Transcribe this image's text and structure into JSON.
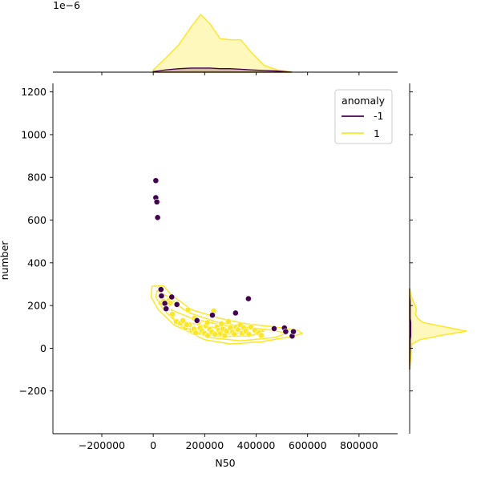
{
  "chart_data": {
    "type": "scatter",
    "xlabel": "N50",
    "ylabel": "number",
    "xlim": [
      -390000,
      950000
    ],
    "ylim": [
      -400,
      1240
    ],
    "xticks": [
      -200000,
      0,
      200000,
      400000,
      600000,
      800000
    ],
    "xtick_labels": [
      "−200000",
      "0",
      "200000",
      "400000",
      "600000",
      "800000"
    ],
    "yticks": [
      -200,
      0,
      200,
      400,
      600,
      800,
      1000,
      1200
    ],
    "ytick_labels": [
      "−200",
      "0",
      "200",
      "400",
      "600",
      "800",
      "1000",
      "1200"
    ],
    "top_marginal_scale_label": "1e−6",
    "grid": false,
    "legend": {
      "title": "anomaly",
      "placement": "top-right",
      "entries": [
        {
          "label": "-1",
          "color": "#440154"
        },
        {
          "label": "1",
          "color": "#fde725"
        }
      ]
    },
    "series": [
      {
        "name": "-1",
        "color": "#440154",
        "points": [
          [
            10000,
            785
          ],
          [
            10000,
            705
          ],
          [
            14000,
            685
          ],
          [
            17000,
            612
          ],
          [
            30000,
            275
          ],
          [
            32000,
            245
          ],
          [
            45000,
            210
          ],
          [
            50000,
            185
          ],
          [
            72000,
            240
          ],
          [
            92000,
            205
          ],
          [
            170000,
            130
          ],
          [
            230000,
            155
          ],
          [
            320000,
            165
          ],
          [
            370000,
            232
          ],
          [
            470000,
            92
          ],
          [
            510000,
            95
          ],
          [
            515000,
            78
          ],
          [
            540000,
            57
          ],
          [
            545000,
            78
          ]
        ]
      },
      {
        "name": "1",
        "color": "#fde725",
        "points": [
          [
            30000,
            212
          ],
          [
            40000,
            220
          ],
          [
            50000,
            205
          ],
          [
            60000,
            222
          ],
          [
            66000,
            212
          ],
          [
            75000,
            160
          ],
          [
            90000,
            125
          ],
          [
            105000,
            118
          ],
          [
            115000,
            130
          ],
          [
            125000,
            95
          ],
          [
            135000,
            180
          ],
          [
            140000,
            110
          ],
          [
            150000,
            85
          ],
          [
            158000,
            90
          ],
          [
            165000,
            72
          ],
          [
            175000,
            120
          ],
          [
            182000,
            95
          ],
          [
            190000,
            80
          ],
          [
            200000,
            70
          ],
          [
            205000,
            105
          ],
          [
            212000,
            60
          ],
          [
            220000,
            88
          ],
          [
            228000,
            75
          ],
          [
            235000,
            175
          ],
          [
            240000,
            65
          ],
          [
            248000,
            100
          ],
          [
            255000,
            85
          ],
          [
            262000,
            70
          ],
          [
            270000,
            90
          ],
          [
            278000,
            60
          ],
          [
            285000,
            80
          ],
          [
            292000,
            125
          ],
          [
            300000,
            95
          ],
          [
            308000,
            75
          ],
          [
            315000,
            65
          ],
          [
            322000,
            100
          ],
          [
            330000,
            88
          ],
          [
            338000,
            110
          ],
          [
            345000,
            70
          ],
          [
            352000,
            95
          ],
          [
            360000,
            80
          ],
          [
            372000,
            65
          ],
          [
            380000,
            100
          ],
          [
            395000,
            85
          ],
          [
            410000,
            72
          ],
          [
            420000,
            60
          ],
          [
            160000,
            140
          ],
          [
            210000,
            120
          ],
          [
            130000,
            110
          ],
          [
            265000,
            115
          ]
        ]
      }
    ],
    "kde_top": {
      "x": [
        0,
        50000,
        100000,
        150000,
        185000,
        220000,
        260000,
        300000,
        340000,
        380000,
        430000,
        480000,
        540000
      ],
      "density_1": [
        0.04,
        0.25,
        0.48,
        0.8,
        1.0,
        0.84,
        0.58,
        0.56,
        0.56,
        0.35,
        0.12,
        0.04,
        0.0
      ],
      "density_neg1": [
        0.01,
        0.04,
        0.06,
        0.07,
        0.07,
        0.07,
        0.06,
        0.06,
        0.05,
        0.04,
        0.03,
        0.02,
        0.0
      ]
    },
    "kde_right": {
      "y": [
        -100,
        20,
        40,
        60,
        80,
        100,
        120,
        140,
        160,
        180,
        200,
        220,
        250,
        280
      ],
      "density_1": [
        0.0,
        0.04,
        0.18,
        0.55,
        1.0,
        0.62,
        0.24,
        0.14,
        0.1,
        0.12,
        0.1,
        0.06,
        0.02,
        0.0
      ],
      "density_neg1": [
        0.0,
        0.01,
        0.01,
        0.02,
        0.02,
        0.02,
        0.02,
        0.01,
        0.01,
        0.01,
        0.01,
        0.01,
        0.0,
        0.0
      ]
    },
    "kde_contours_1": [
      [
        [
          -5000,
          290
        ],
        [
          40000,
          292
        ],
        [
          70000,
          250
        ],
        [
          150000,
          180
        ],
        [
          260000,
          140
        ],
        [
          360000,
          115
        ],
        [
          470000,
          100
        ],
        [
          560000,
          85
        ],
        [
          580000,
          70
        ],
        [
          540000,
          55
        ],
        [
          420000,
          30
        ],
        [
          300000,
          20
        ],
        [
          200000,
          40
        ],
        [
          80000,
          110
        ],
        [
          20000,
          180
        ],
        [
          -8000,
          240
        ]
      ],
      [
        [
          15000,
          270
        ],
        [
          60000,
          240
        ],
        [
          130000,
          170
        ],
        [
          240000,
          125
        ],
        [
          350000,
          100
        ],
        [
          460000,
          85
        ],
        [
          520000,
          70
        ],
        [
          470000,
          50
        ],
        [
          340000,
          35
        ],
        [
          220000,
          50
        ],
        [
          110000,
          100
        ],
        [
          40000,
          180
        ],
        [
          10000,
          240
        ]
      ],
      [
        [
          70000,
          180
        ],
        [
          150000,
          140
        ],
        [
          260000,
          110
        ],
        [
          380000,
          90
        ],
        [
          430000,
          80
        ],
        [
          380000,
          58
        ],
        [
          260000,
          55
        ],
        [
          150000,
          80
        ],
        [
          80000,
          130
        ]
      ],
      [
        [
          120000,
          125
        ],
        [
          220000,
          100
        ],
        [
          320000,
          88
        ],
        [
          370000,
          78
        ],
        [
          300000,
          68
        ],
        [
          200000,
          70
        ],
        [
          130000,
          95
        ]
      ]
    ]
  }
}
